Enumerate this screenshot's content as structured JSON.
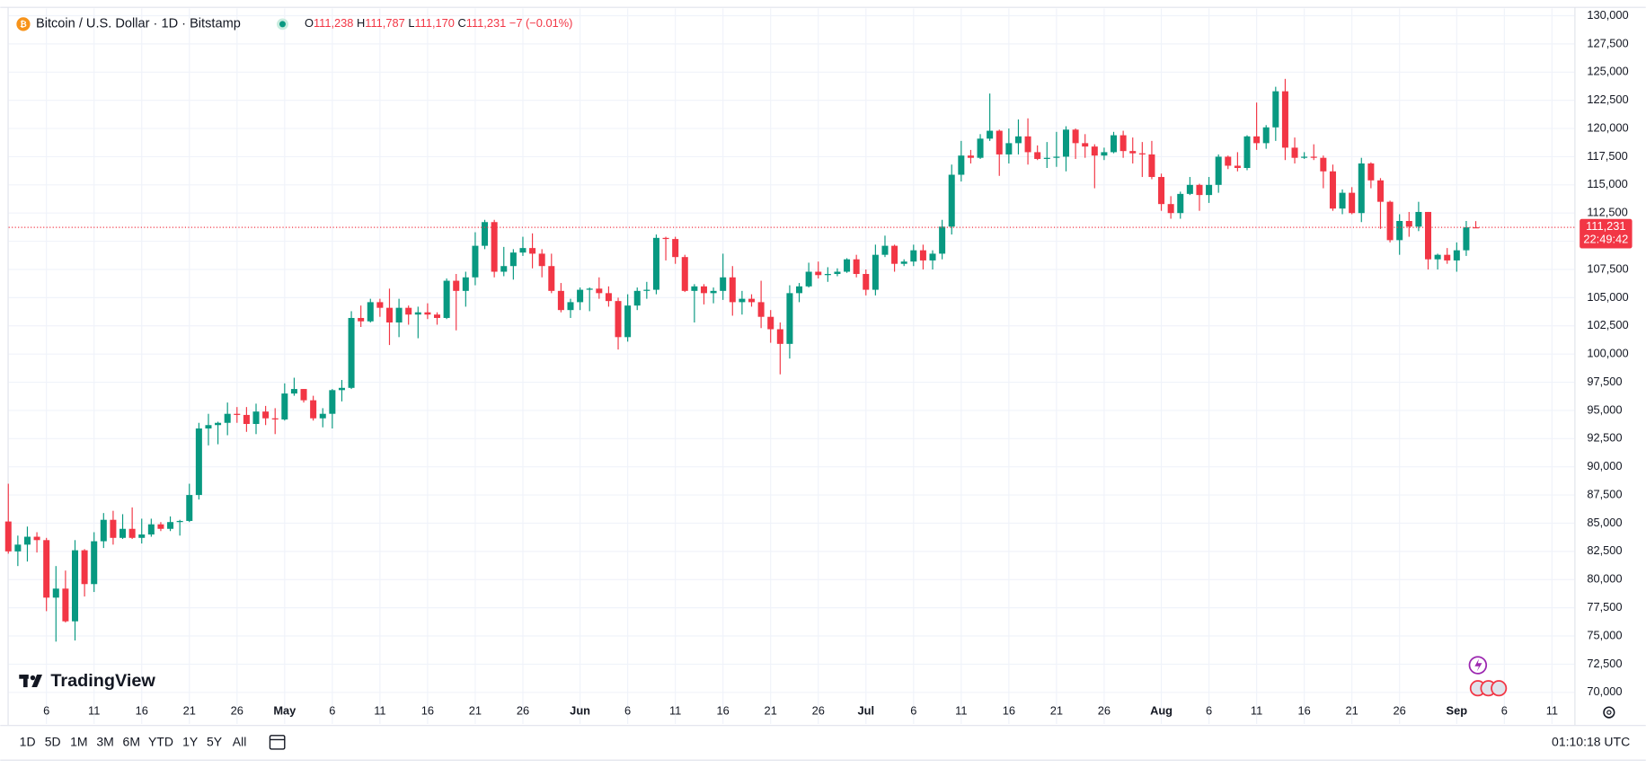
{
  "chart_data": {
    "type": "candlestick",
    "title": "Bitcoin / U.S. Dollar · 1D · Bitstamp",
    "ohlc_letters": [
      "O",
      "H",
      "L",
      "C"
    ],
    "ohlc_labels": {
      "open": "111,238",
      "high": "111,787",
      "low": "111,170",
      "close": "111,231",
      "change": "−7 (−0.01%)"
    },
    "countdown": "22:49:42",
    "up_color": "#089981",
    "down_color": "#f23645",
    "grid": true,
    "categories": [
      null,
      null,
      null,
      null,
      "6",
      null,
      null,
      null,
      null,
      "11",
      null,
      null,
      null,
      null,
      "16",
      null,
      null,
      null,
      null,
      "21",
      null,
      null,
      null,
      null,
      "26",
      null,
      null,
      null,
      null,
      "May",
      null,
      null,
      null,
      null,
      "6",
      null,
      null,
      null,
      null,
      "11",
      null,
      null,
      null,
      null,
      "16",
      null,
      null,
      null,
      null,
      "21",
      null,
      null,
      null,
      null,
      "26",
      null,
      null,
      null,
      null,
      null,
      "Jun",
      null,
      null,
      null,
      null,
      "6",
      null,
      null,
      null,
      null,
      "11",
      null,
      null,
      null,
      null,
      "16",
      null,
      null,
      null,
      null,
      "21",
      null,
      null,
      null,
      null,
      "26",
      null,
      null,
      null,
      null,
      "Jul",
      null,
      null,
      null,
      null,
      "6",
      null,
      null,
      null,
      null,
      "11",
      null,
      null,
      null,
      null,
      "16",
      null,
      null,
      null,
      null,
      "21",
      null,
      null,
      null,
      null,
      "26",
      null,
      null,
      null,
      null,
      null,
      "Aug",
      null,
      null,
      null,
      null,
      "6",
      null,
      null,
      null,
      null,
      "11",
      null,
      null,
      null,
      null,
      "16",
      null,
      null,
      null,
      null,
      "21",
      null,
      null,
      null,
      null,
      "26",
      null,
      null,
      null,
      null,
      null,
      "Sep",
      null,
      null,
      null,
      null,
      "6",
      null,
      null,
      null,
      null,
      "11",
      null
    ],
    "open": [
      85150,
      82500,
      83100,
      83800,
      83500,
      78400,
      79200,
      76300,
      82600,
      79600,
      83400,
      85300,
      83700,
      84500,
      83700,
      84000,
      84900,
      84500,
      85100,
      85200,
      87500,
      93400,
      93700,
      93900,
      94700,
      94600,
      93800,
      94900,
      94300,
      94200,
      96500,
      96900,
      95900,
      94300,
      94700,
      96800,
      97000,
      103200,
      102900,
      104600,
      104100,
      102800,
      104100,
      103500,
      103700,
      103500,
      103200,
      106500,
      105600,
      106800,
      109600,
      111700,
      107300,
      107800,
      109000,
      109400,
      108900,
      107800,
      105600,
      103900,
      104600,
      105700,
      105800,
      105400,
      104700,
      101500,
      104300,
      105600,
      105700,
      110300,
      110200,
      108600,
      105600,
      106000,
      105400,
      105600,
      106800,
      104600,
      104900,
      104600,
      103300,
      102200,
      100900,
      105400,
      106000,
      107300,
      107000,
      107100,
      107300,
      108400,
      107100,
      105700,
      108800,
      109600,
      108000,
      108200,
      109200,
      108300,
      108900,
      111300,
      115900,
      117600,
      117400,
      119100,
      119800,
      117700,
      118700,
      119300,
      117900,
      117300,
      117400,
      117500,
      119900,
      118700,
      118400,
      117600,
      117900,
      119400,
      118000,
      117800,
      117700,
      115700,
      113300,
      112500,
      114200,
      115000,
      114100,
      115000,
      117500,
      116700,
      116500,
      119300,
      118700,
      120100,
      123300,
      118300,
      117400,
      117500,
      117400,
      116200,
      112900,
      114300,
      112500,
      116900,
      115400,
      113500,
      110100,
      111800,
      111300,
      112600,
      108400,
      108800,
      108300,
      109200,
      111238,
      null,
      null,
      null,
      null,
      null,
      null,
      null,
      null,
      null
    ],
    "high": [
      88500,
      83900,
      84700,
      84200,
      83700,
      81200,
      80800,
      83500,
      82700,
      84200,
      85900,
      86100,
      85800,
      86400,
      85400,
      85400,
      85100,
      85600,
      85300,
      88500,
      93900,
      94700,
      94000,
      95700,
      95300,
      95300,
      95600,
      95400,
      95200,
      97400,
      97900,
      96900,
      96300,
      95200,
      96900,
      97700,
      103800,
      104300,
      104900,
      104900,
      105800,
      104900,
      104300,
      104200,
      104500,
      103700,
      106700,
      107100,
      107300,
      110800,
      111900,
      111900,
      109500,
      109300,
      110400,
      110700,
      109300,
      108900,
      106300,
      104900,
      105900,
      105900,
      106800,
      106000,
      105000,
      105300,
      105900,
      106400,
      110600,
      110400,
      110400,
      108800,
      106200,
      106200,
      105900,
      108900,
      107800,
      105600,
      105300,
      106500,
      103900,
      102800,
      106100,
      106300,
      108100,
      108200,
      107700,
      107600,
      108500,
      108800,
      107500,
      109700,
      110500,
      109700,
      108400,
      109700,
      109700,
      109200,
      111900,
      116800,
      118900,
      118100,
      119500,
      123100,
      119900,
      120000,
      120800,
      120900,
      118500,
      118800,
      119700,
      120200,
      120000,
      119500,
      118600,
      118300,
      119700,
      119800,
      119200,
      118800,
      118900,
      116000,
      114000,
      114400,
      115700,
      115100,
      115700,
      117700,
      117600,
      117900,
      119400,
      122300,
      120300,
      123700,
      124400,
      119200,
      117900,
      118600,
      117600,
      116800,
      114600,
      114800,
      117400,
      117000,
      115600,
      113600,
      112400,
      112600,
      113500,
      112600,
      108900,
      109400,
      109900,
      111800,
      111787,
      null,
      null,
      null,
      null,
      null,
      null,
      null,
      null,
      null
    ],
    "low": [
      82300,
      81200,
      81600,
      82400,
      77200,
      74500,
      76200,
      74600,
      78500,
      78900,
      82800,
      83100,
      83600,
      83600,
      83200,
      83800,
      84300,
      84300,
      83900,
      85100,
      87100,
      91900,
      92000,
      92800,
      93900,
      93100,
      92900,
      93700,
      92900,
      94100,
      96300,
      95700,
      94100,
      93500,
      93400,
      95800,
      96900,
      102400,
      102800,
      103300,
      100800,
      101500,
      102600,
      101400,
      103100,
      102600,
      103100,
      102100,
      104200,
      106100,
      109300,
      106800,
      106900,
      106600,
      108700,
      107600,
      106800,
      105400,
      103700,
      103200,
      103900,
      103800,
      104900,
      104200,
      100400,
      101100,
      103900,
      104900,
      105300,
      108300,
      108000,
      105500,
      102800,
      104400,
      104500,
      104800,
      103400,
      103500,
      104200,
      102300,
      101000,
      98200,
      99600,
      104600,
      105900,
      106700,
      106400,
      106900,
      107200,
      106800,
      105200,
      105200,
      108600,
      107300,
      107800,
      107800,
      107500,
      107500,
      108400,
      110600,
      115300,
      116900,
      117300,
      118900,
      115800,
      116900,
      117700,
      116800,
      117200,
      116500,
      116600,
      116200,
      117300,
      117400,
      114700,
      117200,
      117800,
      117400,
      116900,
      115700,
      115500,
      112700,
      112000,
      112000,
      114100,
      112700,
      113400,
      114300,
      116400,
      116200,
      116300,
      118100,
      118200,
      118900,
      117200,
      116900,
      117300,
      117200,
      114700,
      112700,
      112400,
      112400,
      111700,
      114700,
      111100,
      109900,
      108800,
      110400,
      110900,
      107500,
      107500,
      108000,
      107300,
      108700,
      111170,
      null,
      null,
      null,
      null,
      null,
      null,
      null,
      null,
      null
    ],
    "close": [
      82500,
      83100,
      83800,
      83500,
      78400,
      79200,
      76300,
      82600,
      79600,
      83400,
      85300,
      83700,
      84500,
      83700,
      84000,
      84900,
      84500,
      85100,
      85200,
      87500,
      93400,
      93700,
      93900,
      94700,
      94600,
      93800,
      94900,
      94300,
      94200,
      96500,
      96900,
      95900,
      94300,
      94700,
      96800,
      97000,
      103200,
      102900,
      104600,
      104100,
      102800,
      104100,
      103500,
      103700,
      103500,
      103200,
      106500,
      105600,
      106800,
      109600,
      111700,
      107300,
      107800,
      109000,
      109400,
      108900,
      107800,
      105600,
      103900,
      104600,
      105700,
      105800,
      105400,
      104700,
      101500,
      104300,
      105600,
      105700,
      110300,
      110200,
      108600,
      105600,
      106000,
      105400,
      105600,
      106800,
      104600,
      104900,
      104600,
      103300,
      102200,
      100900,
      105400,
      106000,
      107300,
      107000,
      107100,
      107300,
      108400,
      107100,
      105700,
      108800,
      109600,
      108000,
      108200,
      109200,
      108300,
      108900,
      111300,
      115900,
      117600,
      117400,
      119100,
      119800,
      117700,
      118700,
      119300,
      117900,
      117300,
      117400,
      117500,
      119900,
      118700,
      118400,
      117600,
      117900,
      119400,
      118000,
      117800,
      117700,
      115700,
      113300,
      112500,
      114200,
      115000,
      114100,
      115000,
      117500,
      116700,
      116500,
      119300,
      118700,
      120100,
      123300,
      118300,
      117400,
      117500,
      117400,
      116200,
      112900,
      114300,
      112500,
      116900,
      115400,
      113500,
      110100,
      111800,
      111300,
      112600,
      108400,
      108800,
      108300,
      109200,
      111238,
      111231,
      null,
      null,
      null,
      null,
      null,
      null,
      null,
      null,
      null
    ],
    "ylim": [
      67200,
      130650
    ],
    "yticks": [
      {
        "value": 130000,
        "label": "130,000"
      },
      {
        "value": 127500,
        "label": "127,500"
      },
      {
        "value": 125000,
        "label": "125,000"
      },
      {
        "value": 122500,
        "label": "122,500"
      },
      {
        "value": 120000,
        "label": "120,000"
      },
      {
        "value": 117500,
        "label": "117,500"
      },
      {
        "value": 115000,
        "label": "115,000"
      },
      {
        "value": 112500,
        "label": "112,500"
      },
      {
        "value": 110000,
        "label": "110,000"
      },
      {
        "value": 107500,
        "label": "107,500"
      },
      {
        "value": 105000,
        "label": "105,000"
      },
      {
        "value": 102500,
        "label": "102,500"
      },
      {
        "value": 100000,
        "label": "100,000"
      },
      {
        "value": 97500,
        "label": "97,500"
      },
      {
        "value": 95000,
        "label": "95,000"
      },
      {
        "value": 92500,
        "label": "92,500"
      },
      {
        "value": 90000,
        "label": "90,000"
      },
      {
        "value": 87500,
        "label": "87,500"
      },
      {
        "value": 85000,
        "label": "85,000"
      },
      {
        "value": 82500,
        "label": "82,500"
      },
      {
        "value": 80000,
        "label": "80,000"
      },
      {
        "value": 77500,
        "label": "77,500"
      },
      {
        "value": 75000,
        "label": "75,000"
      },
      {
        "value": 72500,
        "label": "72,500"
      },
      {
        "value": 70000,
        "label": "70,000"
      }
    ]
  },
  "brand": "TradingView",
  "toolbar": {
    "ranges": [
      "1D",
      "5D",
      "1M",
      "3M",
      "6M",
      "YTD",
      "1Y",
      "5Y",
      "All"
    ],
    "clock": "01:10:18 UTC"
  }
}
